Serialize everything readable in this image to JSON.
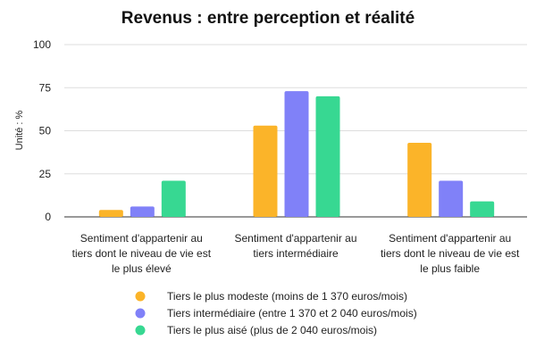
{
  "chart_data": {
    "type": "bar",
    "title": "Revenus : entre perception et réalité",
    "ylabel": "Unité : %",
    "ylim": [
      0,
      100
    ],
    "yticks": [
      0,
      25,
      50,
      75,
      100
    ],
    "grid": true,
    "legend": "bottom",
    "categories": [
      [
        "Sentiment d'appartenir au",
        "tiers dont le niveau de vie est",
        "le plus élevé"
      ],
      [
        "Sentiment d'appartenir au",
        "tiers intermédiaire"
      ],
      [
        "Sentiment d'appartenir au",
        "tiers dont le niveau de vie est",
        "le plus faible"
      ]
    ],
    "series": [
      {
        "name": "Tiers le plus modeste (moins de 1 370 euros/mois)",
        "color": "#FBB429",
        "values": [
          4,
          53,
          43
        ]
      },
      {
        "name": "Tiers intermédiaire (entre 1 370 et 2 040 euros/mois)",
        "color": "#8081F8",
        "values": [
          6,
          73,
          21
        ]
      },
      {
        "name": "Tiers le plus aisé (plus de 2 040 euros/mois)",
        "color": "#37D892",
        "values": [
          21,
          70,
          9
        ]
      }
    ]
  }
}
